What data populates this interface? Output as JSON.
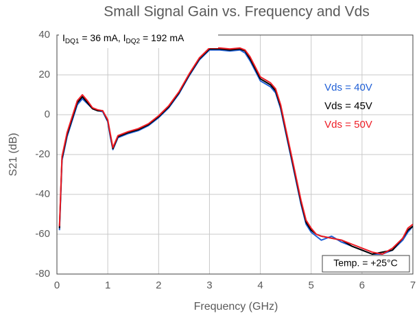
{
  "chart_data": {
    "type": "line",
    "title": "Small Signal Gain vs. Frequency and Vds",
    "xlabel": "Frequency (GHz)",
    "ylabel": "S21 (dB)",
    "annotation_bias": [
      "I",
      "DQ1",
      " = 36 mA, I",
      "DQ2",
      " = 192 mA"
    ],
    "annotation_temp": "Temp. = +25°C",
    "x": [
      0.05,
      0.1,
      0.2,
      0.3,
      0.4,
      0.5,
      0.6,
      0.7,
      0.8,
      0.9,
      1.0,
      1.05,
      1.1,
      1.2,
      1.4,
      1.6,
      1.8,
      2.0,
      2.2,
      2.4,
      2.6,
      2.8,
      3.0,
      3.2,
      3.4,
      3.6,
      3.7,
      3.8,
      3.9,
      4.0,
      4.2,
      4.3,
      4.4,
      4.5,
      4.6,
      4.7,
      4.8,
      4.9,
      5.0,
      5.1,
      5.2,
      5.4,
      5.6,
      5.8,
      6.0,
      6.2,
      6.4,
      6.6,
      6.8,
      6.9,
      7.0
    ],
    "series": [
      {
        "name": "Vds = 40V",
        "color": "#1f5fd6",
        "values": [
          -58,
          -23,
          -11,
          -3,
          5,
          8,
          5.5,
          3,
          2,
          1.5,
          -3.5,
          -11,
          -17.5,
          -11.5,
          -9.5,
          -8,
          -5.5,
          -1.5,
          3.5,
          10.5,
          19.5,
          27.5,
          32.5,
          32.5,
          32,
          32.5,
          31,
          27,
          22,
          17,
          14,
          11,
          3,
          -9,
          -21,
          -33,
          -45,
          -55,
          -59,
          -61,
          -63,
          -61,
          -64,
          -66,
          -68,
          -70,
          -70,
          -68,
          -63,
          -59,
          -56
        ]
      },
      {
        "name": "Vds = 45V",
        "color": "#000000",
        "values": [
          -57,
          -22,
          -10,
          -2,
          6,
          9,
          6,
          3,
          2,
          2,
          -3,
          -10,
          -17,
          -11,
          -9,
          -7.5,
          -5,
          -1,
          4,
          11,
          20,
          28,
          33,
          33,
          32.5,
          33,
          32,
          28,
          23,
          18,
          15,
          12,
          4,
          -8,
          -20,
          -32,
          -44,
          -54,
          -58,
          -60,
          -61,
          -62,
          -63,
          -66,
          -68,
          -70,
          -69,
          -68,
          -62,
          -58,
          -56
        ]
      },
      {
        "name": "Vds = 50V",
        "color": "#ee1c25",
        "values": [
          -56,
          -21,
          -9,
          -1,
          7,
          10,
          7,
          3.5,
          2.5,
          2,
          -2.5,
          -9.5,
          -16.5,
          -10.5,
          -8.5,
          -7,
          -4.5,
          -0.5,
          4.5,
          11.5,
          20.5,
          28.5,
          33.5,
          33.5,
          33,
          33.5,
          32.5,
          29,
          24,
          19,
          16,
          13,
          5,
          -7,
          -19,
          -31,
          -43,
          -53,
          -57,
          -60,
          -61,
          -62,
          -63,
          -65,
          -67,
          -69,
          -70,
          -67,
          -62,
          -57,
          -55
        ]
      }
    ],
    "xlim": [
      0,
      7
    ],
    "xticks": [
      0,
      1,
      2,
      3,
      4,
      5,
      6,
      7
    ],
    "ylim": [
      -80,
      40
    ],
    "yticks": [
      -80,
      -60,
      -40,
      -20,
      0,
      20,
      40
    ],
    "grid": true
  }
}
